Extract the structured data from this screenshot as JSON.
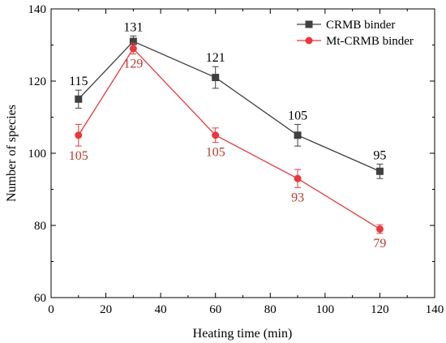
{
  "chart_data": {
    "type": "line",
    "xlabel": "Heating time (min)",
    "ylabel": "Number of species",
    "xlim": [
      0,
      140
    ],
    "ylim": [
      60,
      140
    ],
    "xticks": [
      0,
      20,
      40,
      60,
      80,
      100,
      120,
      140
    ],
    "yticks": [
      60,
      80,
      100,
      120,
      140
    ],
    "grid": false,
    "legend_position": "top-right",
    "series": [
      {
        "name": "CRMB binder",
        "color": "#404040",
        "marker": "square",
        "x": [
          10,
          30,
          60,
          90,
          120
        ],
        "y": [
          115,
          131,
          121,
          105,
          95
        ],
        "error": [
          2.5,
          1.5,
          3,
          3,
          2
        ],
        "labels": [
          "115",
          "131",
          "121",
          "105",
          "95"
        ],
        "label_position": "above"
      },
      {
        "name": "Mt-CRMB binder",
        "color": "#e8383c",
        "label_color": "#c0392b",
        "marker": "circle",
        "x": [
          10,
          30,
          60,
          90,
          120
        ],
        "y": [
          105,
          129,
          105,
          93,
          79
        ],
        "error": [
          3,
          1.5,
          2,
          2.5,
          1.2
        ],
        "labels": [
          "105",
          "129",
          "105",
          "93",
          "79"
        ],
        "label_position": "below"
      }
    ]
  }
}
